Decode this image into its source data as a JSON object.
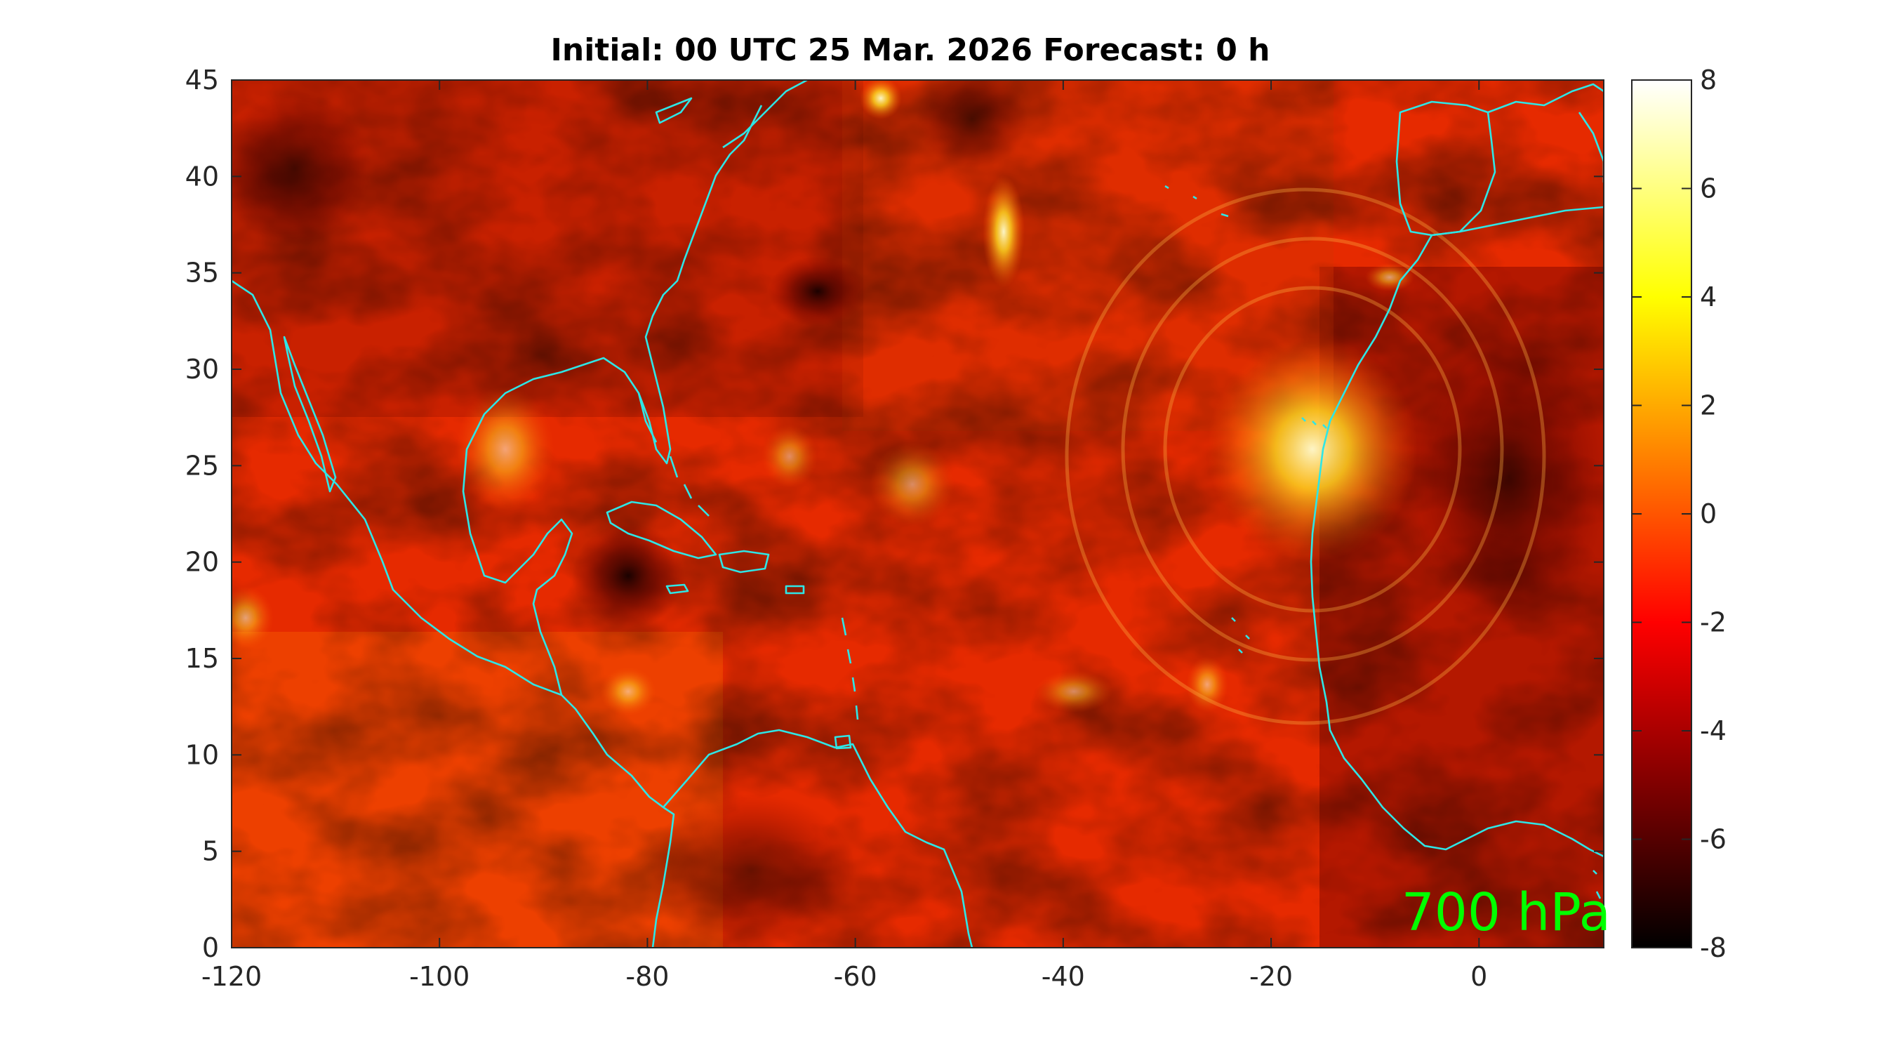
{
  "title": "Initial: 00 UTC 25 Mar. 2026 Forecast: 0 h",
  "level_label": "700 hPa",
  "colors": {
    "coastline": "#2ee6e6",
    "level_label": "#00ff00",
    "colormap": "hot"
  },
  "map": {
    "x_ticks": [
      "-120",
      "-100",
      "-80",
      "-60",
      "-40",
      "-20",
      "0"
    ],
    "y_ticks": [
      "0",
      "5",
      "10",
      "15",
      "20",
      "25",
      "30",
      "35",
      "40",
      "45"
    ],
    "lon_range": [
      -120,
      12
    ],
    "lat_range": [
      0,
      45
    ]
  },
  "colorbar": {
    "ticks": [
      "8",
      "6",
      "4",
      "2",
      "0",
      "-2",
      "-4",
      "-6",
      "-8"
    ],
    "range": [
      -8,
      8
    ]
  }
}
